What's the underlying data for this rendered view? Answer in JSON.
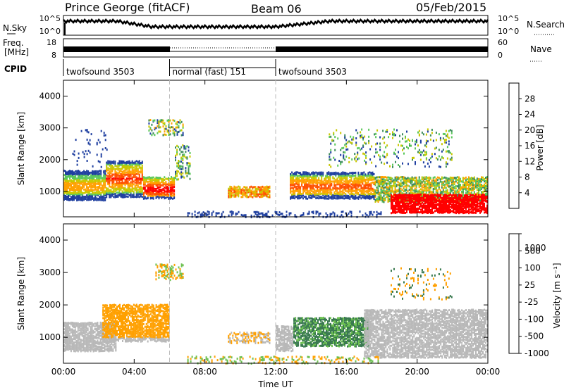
{
  "header": {
    "station": "Prince George (fitACF)",
    "beam": "Beam 06",
    "date": "05/Feb/2015"
  },
  "noise_panel": {
    "left_label": "N.Sky",
    "right_label": "N.Search",
    "left_ticks": [
      "10^5",
      "10^0"
    ],
    "right_ticks": [
      "10^5",
      "10^0"
    ]
  },
  "freq_panel": {
    "left_label_1": "Freq.",
    "left_label_2": "[MHz]",
    "left_ticks": [
      "18",
      "8"
    ],
    "right_label": "Nave",
    "right_ticks": [
      "60",
      "0"
    ]
  },
  "cpid": {
    "label": "CPID",
    "segments": [
      {
        "start_hour": 0,
        "end_hour": 6,
        "text": "twofsound 3503"
      },
      {
        "start_hour": 6,
        "end_hour": 12,
        "text": "normal (fast) 151"
      },
      {
        "start_hour": 12,
        "end_hour": 24,
        "text": "twofsound 3503"
      }
    ]
  },
  "colors": {
    "power": [
      "#0000ff",
      "#1f3fa0",
      "#3c8c5a",
      "#5ac85a",
      "#c8c800",
      "#ffa000",
      "#ff5000",
      "#ff0000"
    ],
    "velocity": [
      "#2040c0",
      "#3a7a50",
      "#6cc050",
      "#b8b8b8",
      "#ffa000",
      "#ff7000",
      "#ff0000"
    ]
  },
  "chart_data": [
    {
      "type": "heatmap",
      "title": "",
      "xlabel": "",
      "ylabel": "Slant Range [km]",
      "xlim": [
        0,
        24
      ],
      "ylim": [
        200,
        4500
      ],
      "y_ticks": [
        "1000",
        "2000",
        "3000",
        "4000"
      ],
      "colorbar_label": "Power [dB]",
      "colorbar_ticks": [
        "4",
        "8",
        "12",
        "16",
        "20",
        "24",
        "28"
      ],
      "scatter_regions": [
        {
          "x": [
            0,
            2
          ],
          "y": [
            800,
            1600
          ],
          "value": "green/orange"
        },
        {
          "x": [
            2,
            6
          ],
          "y": [
            800,
            2000
          ],
          "value": "orange/red"
        },
        {
          "x": [
            9.5,
            11.5
          ],
          "y": [
            900,
            1200
          ],
          "value": "orange"
        },
        {
          "x": [
            13,
            17.5
          ],
          "y": [
            800,
            1600
          ],
          "value": "orange/red"
        },
        {
          "x": [
            18.5,
            24
          ],
          "y": [
            400,
            1100
          ],
          "value": "red"
        }
      ]
    },
    {
      "type": "heatmap",
      "title": "",
      "xlabel": "Time UT",
      "ylabel": "Slant Range [km]",
      "xlim": [
        0,
        24
      ],
      "ylim": [
        200,
        4500
      ],
      "x_ticks": [
        "00:00",
        "04:00",
        "08:00",
        "12:00",
        "16:00",
        "20:00",
        "00:00"
      ],
      "y_ticks": [
        "1000",
        "2000",
        "3000",
        "4000"
      ],
      "colorbar_label": "Velocity [m s⁻¹]",
      "colorbar_ticks": [
        "1000",
        "500",
        "100",
        "25",
        "-25",
        "-100",
        "-500",
        "-1000"
      ],
      "scatter_regions": [
        {
          "x": [
            0,
            3
          ],
          "y": [
            600,
            1500
          ],
          "value": "grey"
        },
        {
          "x": [
            2.5,
            6
          ],
          "y": [
            1000,
            2000
          ],
          "value": "orange"
        },
        {
          "x": [
            13,
            17
          ],
          "y": [
            800,
            1600
          ],
          "value": "green"
        },
        {
          "x": [
            17,
            24
          ],
          "y": [
            400,
            1800
          ],
          "value": "grey"
        }
      ]
    }
  ]
}
